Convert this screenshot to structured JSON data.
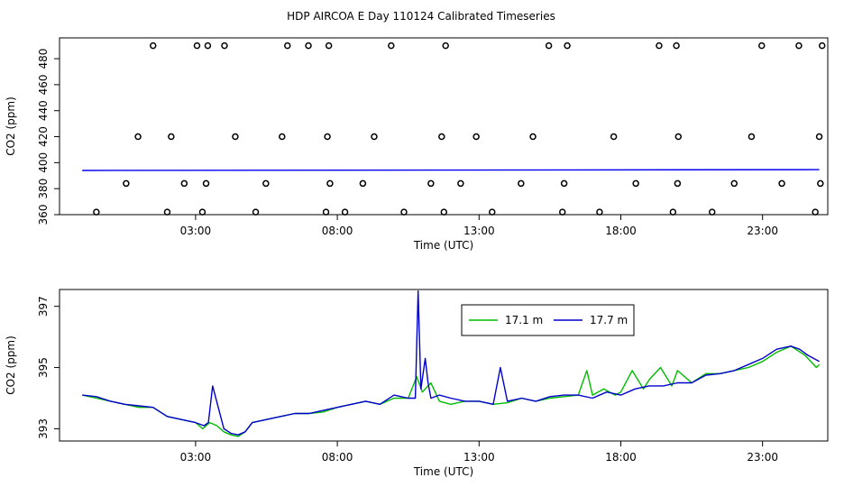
{
  "title": "HDP AIRCOA E  Day 110124  Calibrated Timeseries",
  "chart_data": [
    {
      "type": "scatter",
      "xlabel": "Time (UTC)",
      "ylabel": "CO2 (ppm)",
      "xlim": [
        -1.8,
        25.3
      ],
      "ylim": [
        360.0,
        496.0
      ],
      "xticks": [
        3,
        8,
        13,
        18,
        23
      ],
      "xtick_labels": [
        "03:00",
        "08:00",
        "13:00",
        "18:00",
        "23:00"
      ],
      "yticks": [
        360,
        380,
        400,
        420,
        440,
        460,
        480
      ],
      "ytick_labels": [
        "360",
        "380",
        "400",
        "420",
        "440",
        "460",
        "480"
      ],
      "grid": false,
      "calibration_points": {
        "x": [
          -0.5,
          0.55,
          0.97,
          1.5,
          2.0,
          2.6,
          2.14,
          3.05,
          3.24,
          3.37,
          3.43,
          4.4,
          4.02,
          5.12,
          5.48,
          6.05,
          6.24,
          6.98,
          7.6,
          7.65,
          7.74,
          7.7,
          8.27,
          8.9,
          9.3,
          9.9,
          10.35,
          11.3,
          11.68,
          11.82,
          11.76,
          12.9,
          12.35,
          13.46,
          14.48,
          14.9,
          15.46,
          15.94,
          16.0,
          16.11,
          17.25,
          17.75,
          18.53,
          19.35,
          19.84,
          20.0,
          20.03,
          19.96,
          21.22,
          22.0,
          22.61,
          22.97,
          23.68,
          24.28,
          24.86,
          25.0,
          25.04,
          25.1
        ],
        "y": [
          362,
          384,
          420,
          490,
          362,
          384,
          420,
          490,
          362,
          384,
          490,
          420,
          490,
          362,
          384,
          420,
          490,
          490,
          362,
          420,
          384,
          490,
          362,
          384,
          420,
          490,
          362,
          384,
          420,
          490,
          362,
          420,
          384,
          362,
          384,
          420,
          490,
          362,
          384,
          490,
          362,
          420,
          384,
          490,
          362,
          384,
          420,
          490,
          362,
          384,
          420,
          490,
          384,
          490,
          362,
          420,
          384,
          490
        ]
      },
      "series": [
        {
          "color": "#0000ee",
          "x": [
            -1.0,
            25.0
          ],
          "y": [
            394.0,
            394.6
          ]
        }
      ]
    },
    {
      "type": "line",
      "xlabel": "Time (UTC)",
      "ylabel": "CO2 (ppm)",
      "xlim": [
        -1.8,
        25.3
      ],
      "ylim": [
        392.6,
        397.55
      ],
      "xticks": [
        3,
        8,
        13,
        18,
        23
      ],
      "xtick_labels": [
        "03:00",
        "08:00",
        "13:00",
        "18:00",
        "23:00"
      ],
      "yticks": [
        393,
        395,
        397
      ],
      "ytick_labels": [
        "393",
        "395",
        "397"
      ],
      "grid": false,
      "legend": "top-center",
      "series": [
        {
          "name": "17.1 m",
          "color": "#00bb00",
          "x": [
            -1.0,
            -0.5,
            0.0,
            0.5,
            1.0,
            1.5,
            2.0,
            2.5,
            3.0,
            3.25,
            3.5,
            3.75,
            4.0,
            4.25,
            4.5,
            4.75,
            5.0,
            5.5,
            6.0,
            6.5,
            7.0,
            7.5,
            8.0,
            8.5,
            9.0,
            9.5,
            10.0,
            10.5,
            10.8,
            11.0,
            11.3,
            11.6,
            12.0,
            12.5,
            13.0,
            13.5,
            14.0,
            14.5,
            15.0,
            15.5,
            16.0,
            16.5,
            16.8,
            17.0,
            17.4,
            17.8,
            18.0,
            18.4,
            18.8,
            19.0,
            19.4,
            19.8,
            20.0,
            20.5,
            21.0,
            21.5,
            22.0,
            22.5,
            23.0,
            23.5,
            24.0,
            24.5,
            24.9,
            25.0
          ],
          "y": [
            394.1,
            394.0,
            393.9,
            393.8,
            393.7,
            393.7,
            393.4,
            393.3,
            393.2,
            393.0,
            393.2,
            393.1,
            392.9,
            392.8,
            392.75,
            392.9,
            393.2,
            393.3,
            393.4,
            393.5,
            393.5,
            393.55,
            393.7,
            393.8,
            393.9,
            393.8,
            394.0,
            394.0,
            394.7,
            394.2,
            394.5,
            393.9,
            393.8,
            393.9,
            393.9,
            393.8,
            393.85,
            394.0,
            393.9,
            394.0,
            394.05,
            394.1,
            394.9,
            394.1,
            394.3,
            394.1,
            394.2,
            394.9,
            394.3,
            394.6,
            395.0,
            394.4,
            394.9,
            394.5,
            394.8,
            394.8,
            394.9,
            395.0,
            395.2,
            395.5,
            395.7,
            395.4,
            395.0,
            395.1
          ]
        },
        {
          "name": "17.7 m",
          "color": "#0000cc",
          "x": [
            -1.0,
            -0.5,
            0.0,
            0.5,
            1.0,
            1.5,
            2.0,
            2.5,
            3.0,
            3.3,
            3.45,
            3.6,
            4.0,
            4.25,
            4.5,
            4.75,
            5.0,
            5.5,
            6.0,
            6.5,
            7.0,
            7.5,
            8.0,
            8.5,
            9.0,
            9.5,
            10.0,
            10.5,
            10.75,
            10.85,
            10.95,
            11.1,
            11.2,
            11.3,
            11.6,
            12.0,
            12.5,
            13.0,
            13.5,
            13.75,
            14.0,
            14.5,
            15.0,
            15.5,
            16.0,
            16.5,
            17.0,
            17.5,
            18.0,
            18.5,
            19.0,
            19.5,
            20.0,
            20.5,
            21.0,
            21.5,
            22.0,
            22.5,
            23.0,
            23.5,
            24.0,
            24.3,
            24.6,
            25.0
          ],
          "y": [
            394.1,
            394.05,
            393.9,
            393.8,
            393.75,
            393.7,
            393.4,
            393.3,
            393.2,
            393.1,
            393.2,
            394.4,
            393.0,
            392.85,
            392.8,
            392.9,
            393.2,
            393.3,
            393.4,
            393.5,
            393.5,
            393.6,
            393.7,
            393.8,
            393.9,
            393.8,
            394.1,
            394.0,
            394.0,
            397.5,
            394.3,
            395.3,
            394.5,
            394.0,
            394.1,
            394.0,
            393.9,
            393.9,
            393.8,
            395.0,
            393.9,
            394.0,
            393.9,
            394.05,
            394.1,
            394.1,
            394.0,
            394.2,
            394.1,
            394.3,
            394.4,
            394.4,
            394.5,
            394.5,
            394.75,
            394.8,
            394.9,
            395.1,
            395.3,
            395.6,
            395.7,
            395.6,
            395.4,
            395.2
          ]
        }
      ]
    }
  ]
}
